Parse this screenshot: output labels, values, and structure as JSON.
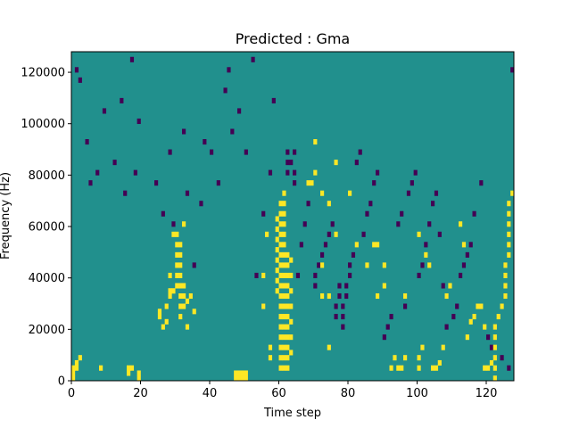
{
  "chart_data": {
    "type": "heatmap",
    "title": "Predicted : Gma",
    "xlabel": "Time step",
    "ylabel": "Frequency (Hz)",
    "xlim": [
      0,
      128
    ],
    "ylim": [
      0,
      128000
    ],
    "grid": false,
    "xticks": [
      0,
      20,
      40,
      60,
      80,
      100,
      120
    ],
    "yticks": [
      0,
      20000,
      40000,
      60000,
      80000,
      100000,
      120000
    ],
    "n_time_steps": 128,
    "n_freq_bins": 64,
    "bin_hz": 2000,
    "colors": {
      "low": "#440154",
      "background": "#21908d",
      "high": "#fde725"
    },
    "background_value": 0,
    "high_cells": [
      [
        0,
        0
      ],
      [
        0,
        1
      ],
      [
        0,
        2
      ],
      [
        1,
        2
      ],
      [
        1,
        3
      ],
      [
        2,
        4
      ],
      [
        8,
        2
      ],
      [
        16,
        1
      ],
      [
        16,
        2
      ],
      [
        17,
        2
      ],
      [
        19,
        0
      ],
      [
        19,
        1
      ],
      [
        25,
        12
      ],
      [
        25,
        13
      ],
      [
        26,
        10
      ],
      [
        27,
        11
      ],
      [
        27,
        14
      ],
      [
        28,
        16
      ],
      [
        28,
        17
      ],
      [
        28,
        20
      ],
      [
        29,
        17
      ],
      [
        29,
        28
      ],
      [
        30,
        18
      ],
      [
        30,
        20
      ],
      [
        30,
        22
      ],
      [
        30,
        24
      ],
      [
        30,
        26
      ],
      [
        30,
        28
      ],
      [
        31,
        12
      ],
      [
        31,
        14
      ],
      [
        31,
        16
      ],
      [
        31,
        18
      ],
      [
        31,
        20
      ],
      [
        31,
        22
      ],
      [
        31,
        24
      ],
      [
        31,
        26
      ],
      [
        32,
        14
      ],
      [
        32,
        16
      ],
      [
        32,
        18
      ],
      [
        32,
        30
      ],
      [
        33,
        10
      ],
      [
        33,
        15
      ],
      [
        34,
        16
      ],
      [
        35,
        13
      ],
      [
        47,
        0
      ],
      [
        47,
        1
      ],
      [
        48,
        0
      ],
      [
        48,
        1
      ],
      [
        49,
        0
      ],
      [
        49,
        1
      ],
      [
        50,
        0
      ],
      [
        50,
        1
      ],
      [
        55,
        14
      ],
      [
        55,
        20
      ],
      [
        56,
        28
      ],
      [
        57,
        6
      ],
      [
        57,
        4
      ],
      [
        59,
        17
      ],
      [
        59,
        19
      ],
      [
        59,
        21
      ],
      [
        59,
        23
      ],
      [
        59,
        25
      ],
      [
        59,
        27
      ],
      [
        59,
        29
      ],
      [
        59,
        31
      ],
      [
        60,
        2
      ],
      [
        60,
        4
      ],
      [
        60,
        6
      ],
      [
        60,
        8
      ],
      [
        60,
        10
      ],
      [
        60,
        12
      ],
      [
        60,
        14
      ],
      [
        60,
        16
      ],
      [
        60,
        18
      ],
      [
        60,
        20
      ],
      [
        60,
        22
      ],
      [
        60,
        24
      ],
      [
        60,
        26
      ],
      [
        60,
        28
      ],
      [
        60,
        30
      ],
      [
        60,
        32
      ],
      [
        60,
        34
      ],
      [
        61,
        2
      ],
      [
        61,
        4
      ],
      [
        61,
        6
      ],
      [
        61,
        8
      ],
      [
        61,
        10
      ],
      [
        61,
        12
      ],
      [
        61,
        14
      ],
      [
        61,
        16
      ],
      [
        61,
        18
      ],
      [
        61,
        20
      ],
      [
        61,
        22
      ],
      [
        61,
        24
      ],
      [
        61,
        26
      ],
      [
        61,
        28
      ],
      [
        61,
        30
      ],
      [
        61,
        32
      ],
      [
        61,
        34
      ],
      [
        61,
        36
      ],
      [
        62,
        2
      ],
      [
        62,
        4
      ],
      [
        62,
        6
      ],
      [
        62,
        8
      ],
      [
        62,
        10
      ],
      [
        62,
        12
      ],
      [
        62,
        14
      ],
      [
        62,
        16
      ],
      [
        62,
        18
      ],
      [
        62,
        20
      ],
      [
        62,
        22
      ],
      [
        62,
        24
      ],
      [
        63,
        5
      ],
      [
        63,
        8
      ],
      [
        63,
        11
      ],
      [
        63,
        14
      ],
      [
        63,
        17
      ],
      [
        63,
        20
      ],
      [
        63,
        23
      ],
      [
        68,
        38
      ],
      [
        69,
        38
      ],
      [
        70,
        40
      ],
      [
        70,
        46
      ],
      [
        72,
        16
      ],
      [
        72,
        22
      ],
      [
        72,
        36
      ],
      [
        74,
        6
      ],
      [
        74,
        16
      ],
      [
        74,
        34
      ],
      [
        76,
        28
      ],
      [
        76,
        42
      ],
      [
        80,
        36
      ],
      [
        82,
        26
      ],
      [
        85,
        22
      ],
      [
        87,
        26
      ],
      [
        88,
        26
      ],
      [
        88,
        16
      ],
      [
        90,
        18
      ],
      [
        90,
        22
      ],
      [
        92,
        2
      ],
      [
        93,
        4
      ],
      [
        94,
        2
      ],
      [
        95,
        2
      ],
      [
        96,
        4
      ],
      [
        96,
        16
      ],
      [
        100,
        2
      ],
      [
        100,
        4
      ],
      [
        100,
        28
      ],
      [
        101,
        6
      ],
      [
        102,
        24
      ],
      [
        103,
        22
      ],
      [
        104,
        2
      ],
      [
        105,
        2
      ],
      [
        106,
        3
      ],
      [
        107,
        6
      ],
      [
        108,
        16
      ],
      [
        109,
        18
      ],
      [
        112,
        30
      ],
      [
        113,
        26
      ],
      [
        114,
        8
      ],
      [
        115,
        11
      ],
      [
        116,
        12
      ],
      [
        117,
        14
      ],
      [
        118,
        14
      ],
      [
        119,
        10
      ],
      [
        119,
        2
      ],
      [
        120,
        2
      ],
      [
        121,
        3
      ],
      [
        122,
        0
      ],
      [
        122,
        2
      ],
      [
        122,
        4
      ],
      [
        122,
        6
      ],
      [
        122,
        8
      ],
      [
        122,
        10
      ],
      [
        123,
        12
      ],
      [
        124,
        14
      ],
      [
        125,
        16
      ],
      [
        125,
        18
      ],
      [
        125,
        20
      ],
      [
        125,
        22
      ],
      [
        126,
        24
      ],
      [
        126,
        26
      ],
      [
        126,
        28
      ],
      [
        126,
        30
      ],
      [
        126,
        32
      ],
      [
        126,
        34
      ],
      [
        127,
        36
      ]
    ],
    "low_cells": [
      [
        1,
        60
      ],
      [
        2,
        58
      ],
      [
        4,
        46
      ],
      [
        5,
        38
      ],
      [
        7,
        40
      ],
      [
        9,
        52
      ],
      [
        12,
        42
      ],
      [
        14,
        54
      ],
      [
        15,
        36
      ],
      [
        17,
        62
      ],
      [
        18,
        40
      ],
      [
        19,
        50
      ],
      [
        24,
        38
      ],
      [
        26,
        32
      ],
      [
        28,
        44
      ],
      [
        29,
        30
      ],
      [
        32,
        48
      ],
      [
        33,
        36
      ],
      [
        35,
        22
      ],
      [
        37,
        34
      ],
      [
        38,
        46
      ],
      [
        40,
        44
      ],
      [
        42,
        38
      ],
      [
        44,
        56
      ],
      [
        45,
        60
      ],
      [
        46,
        48
      ],
      [
        48,
        52
      ],
      [
        50,
        44
      ],
      [
        52,
        62
      ],
      [
        53,
        20
      ],
      [
        55,
        32
      ],
      [
        57,
        40
      ],
      [
        58,
        54
      ],
      [
        62,
        40
      ],
      [
        62,
        42
      ],
      [
        62,
        44
      ],
      [
        63,
        42
      ],
      [
        64,
        38
      ],
      [
        64,
        40
      ],
      [
        64,
        44
      ],
      [
        65,
        20
      ],
      [
        66,
        26
      ],
      [
        67,
        30
      ],
      [
        68,
        34
      ],
      [
        70,
        18
      ],
      [
        70,
        20
      ],
      [
        71,
        22
      ],
      [
        72,
        24
      ],
      [
        73,
        26
      ],
      [
        74,
        28
      ],
      [
        75,
        30
      ],
      [
        76,
        12
      ],
      [
        76,
        14
      ],
      [
        77,
        16
      ],
      [
        77,
        18
      ],
      [
        78,
        10
      ],
      [
        78,
        12
      ],
      [
        78,
        14
      ],
      [
        79,
        16
      ],
      [
        79,
        18
      ],
      [
        80,
        20
      ],
      [
        80,
        22
      ],
      [
        81,
        24
      ],
      [
        82,
        42
      ],
      [
        83,
        44
      ],
      [
        84,
        28
      ],
      [
        85,
        32
      ],
      [
        86,
        34
      ],
      [
        87,
        38
      ],
      [
        88,
        40
      ],
      [
        90,
        8
      ],
      [
        91,
        10
      ],
      [
        92,
        12
      ],
      [
        94,
        30
      ],
      [
        95,
        32
      ],
      [
        96,
        14
      ],
      [
        97,
        36
      ],
      [
        98,
        38
      ],
      [
        99,
        40
      ],
      [
        100,
        20
      ],
      [
        101,
        22
      ],
      [
        102,
        26
      ],
      [
        103,
        30
      ],
      [
        104,
        34
      ],
      [
        105,
        36
      ],
      [
        106,
        28
      ],
      [
        107,
        18
      ],
      [
        108,
        10
      ],
      [
        110,
        12
      ],
      [
        111,
        14
      ],
      [
        112,
        20
      ],
      [
        113,
        22
      ],
      [
        114,
        24
      ],
      [
        115,
        26
      ],
      [
        116,
        32
      ],
      [
        118,
        38
      ],
      [
        120,
        8
      ],
      [
        121,
        6
      ],
      [
        124,
        4
      ],
      [
        126,
        2
      ],
      [
        127,
        60
      ]
    ]
  }
}
